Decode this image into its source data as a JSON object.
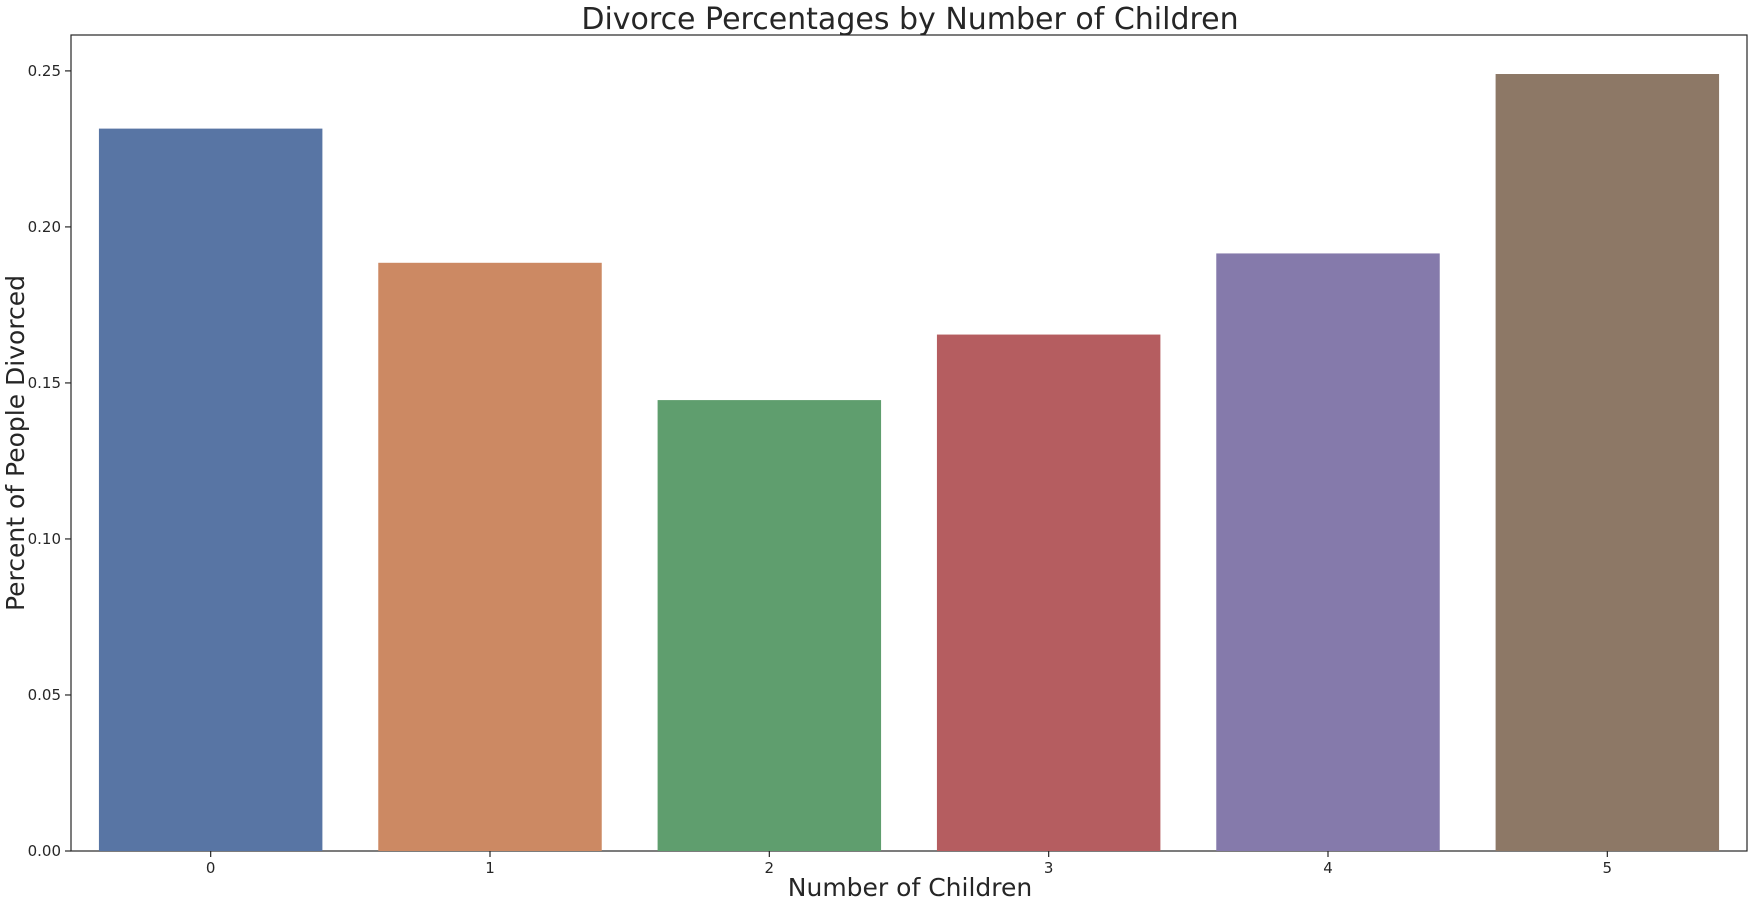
{
  "chart_data": {
    "type": "bar",
    "title": "Divorce Percentages by Number of Children",
    "xlabel": "Number of Children",
    "ylabel": "Percent of People Divorced",
    "categories": [
      "0",
      "1",
      "2",
      "3",
      "4",
      "5"
    ],
    "values": [
      0.2315,
      0.1885,
      0.1445,
      0.1655,
      0.1915,
      0.249
    ],
    "colors": [
      "#5875a4",
      "#cc8963",
      "#5f9e6e",
      "#b55d60",
      "#857aab",
      "#8d7866"
    ],
    "yticks": [
      "0.00",
      "0.05",
      "0.10",
      "0.15",
      "0.20",
      "0.25"
    ],
    "ylim": [
      0,
      0.2615
    ],
    "grid": false,
    "legend": "none"
  }
}
